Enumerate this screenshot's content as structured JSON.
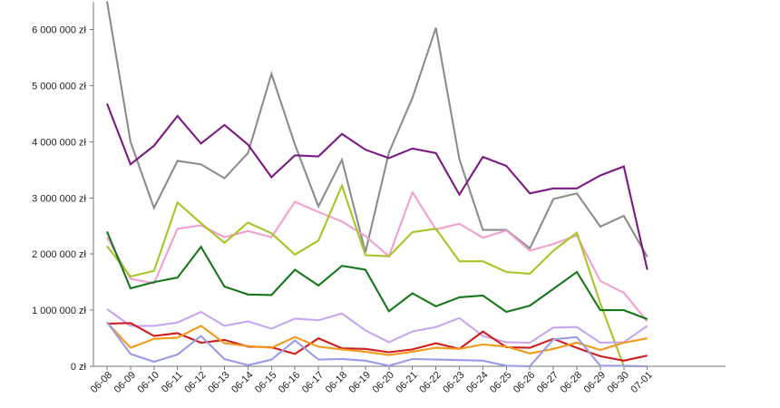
{
  "chart_data": {
    "type": "line",
    "categories": [
      "06-08",
      "06-09",
      "06-10",
      "06-11",
      "06-12",
      "06-13",
      "06-14",
      "06-15",
      "06-16",
      "06-17",
      "06-18",
      "06-19",
      "06-20",
      "06-21",
      "06-22",
      "06-23",
      "06-24",
      "06-25",
      "06-26",
      "06-27",
      "06-28",
      "06-29",
      "06-30",
      "07-01"
    ],
    "y_ticks": [
      "0 zł",
      "1 000 000 zł",
      "2 000 000 zł",
      "3 000 000 zł",
      "4 000 000 zł",
      "5 000 000 zł",
      "6 000 000 zł"
    ],
    "ylim": [
      0,
      6500000
    ],
    "grid": false,
    "title": "",
    "xlabel": "",
    "ylabel": "",
    "series": [
      {
        "color": "#8c8c8c",
        "values": [
          6700000,
          4000000,
          2820000,
          3660000,
          3600000,
          3350000,
          3800000,
          5210000,
          3950000,
          2850000,
          3680000,
          2030000,
          3810000,
          4780000,
          6030000,
          3690000,
          2430000,
          2430000,
          2100000,
          2980000,
          3080000,
          2490000,
          2680000,
          1950000
        ]
      },
      {
        "color": "#7b1a82",
        "values": [
          4680000,
          3600000,
          3930000,
          4460000,
          3970000,
          4300000,
          3950000,
          3370000,
          3760000,
          3740000,
          4140000,
          3860000,
          3710000,
          3880000,
          3800000,
          3060000,
          3730000,
          3570000,
          3080000,
          3170000,
          3170000,
          3400000,
          3560000,
          1720000
        ]
      },
      {
        "color": "#f2a0cf",
        "values": [
          2300000,
          1560000,
          1480000,
          2450000,
          2510000,
          2300000,
          2410000,
          2300000,
          2930000,
          2750000,
          2580000,
          2320000,
          1960000,
          3100000,
          2440000,
          2540000,
          2290000,
          2420000,
          2060000,
          2180000,
          2330000,
          1520000,
          1310000,
          800000
        ]
      },
      {
        "color": "#a8c426",
        "values": [
          2140000,
          1600000,
          1700000,
          2920000,
          2550000,
          2200000,
          2560000,
          2370000,
          1990000,
          2240000,
          3220000,
          1980000,
          1960000,
          2390000,
          2450000,
          1870000,
          1870000,
          1680000,
          1650000,
          2060000,
          2380000,
          1120000,
          0,
          0
        ]
      },
      {
        "color": "#16781a",
        "values": [
          2400000,
          1390000,
          1500000,
          1580000,
          2130000,
          1420000,
          1280000,
          1270000,
          1720000,
          1440000,
          1790000,
          1720000,
          980000,
          1300000,
          1070000,
          1230000,
          1260000,
          970000,
          1080000,
          1380000,
          1680000,
          1000000,
          1000000,
          840000
        ]
      },
      {
        "color": "#c8a6ef",
        "values": [
          1020000,
          720000,
          720000,
          780000,
          970000,
          720000,
          800000,
          670000,
          850000,
          820000,
          940000,
          640000,
          430000,
          620000,
          700000,
          860000,
          540000,
          430000,
          420000,
          690000,
          700000,
          420000,
          430000,
          720000
        ]
      },
      {
        "color": "#d01c1c",
        "values": [
          760000,
          770000,
          540000,
          590000,
          420000,
          470000,
          350000,
          340000,
          220000,
          500000,
          320000,
          310000,
          250000,
          300000,
          410000,
          310000,
          620000,
          340000,
          330000,
          490000,
          330000,
          180000,
          100000,
          190000
        ]
      },
      {
        "color": "#f29a1d",
        "values": [
          780000,
          330000,
          490000,
          510000,
          720000,
          410000,
          360000,
          330000,
          520000,
          350000,
          300000,
          260000,
          200000,
          260000,
          330000,
          310000,
          390000,
          350000,
          230000,
          310000,
          420000,
          290000,
          420000,
          500000
        ]
      },
      {
        "color": "#9b9be8",
        "values": [
          790000,
          220000,
          80000,
          210000,
          540000,
          130000,
          20000,
          120000,
          460000,
          120000,
          130000,
          100000,
          10000,
          130000,
          120000,
          110000,
          100000,
          10000,
          0,
          480000,
          520000,
          10000,
          10000,
          0
        ]
      }
    ]
  }
}
